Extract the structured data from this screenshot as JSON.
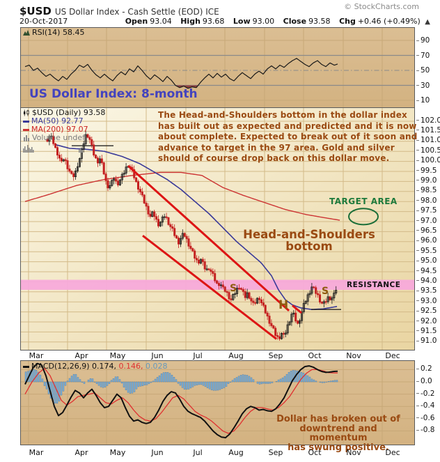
{
  "header": {
    "symbol": "$USD",
    "title": "US Dollar Index - Cash Settle (EOD) ICE",
    "copyright": "© StockCharts.com",
    "date": "20-Oct-2017",
    "ohlc": [
      {
        "label": "Open",
        "value": "93.04"
      },
      {
        "label": "High",
        "value": "93.68"
      },
      {
        "label": "Low",
        "value": "93.00"
      },
      {
        "label": "Close",
        "value": "93.58"
      },
      {
        "label": "Chg",
        "value": "+0.46 (+0.49%)"
      }
    ],
    "chg_arrow": "▲"
  },
  "rsi_panel": {
    "legend": "RSI(14) 58.45",
    "axis": [
      "90",
      "70",
      "50",
      "30",
      "10"
    ]
  },
  "main_panel": {
    "legend": {
      "symbol": "$USD (Daily) 93.58",
      "ma50": "MA(50) 92.77",
      "ma200": "MA(200) 97.07",
      "volume": "Volume undef"
    },
    "axis": [
      "102.0",
      "101.5",
      "101.0",
      "100.5",
      "100.0",
      "99.5",
      "99.0",
      "98.5",
      "98.0",
      "97.5",
      "97.0",
      "96.5",
      "96.0",
      "95.5",
      "95.0",
      "94.5",
      "94.0",
      "93.5",
      "93.0",
      "92.5",
      "92.0",
      "91.5",
      "91.0"
    ]
  },
  "macd_panel": {
    "legend_black": "MACD(12,26,9) 0.174,",
    "legend_red": " 0.146,",
    "legend_blue": " 0.028",
    "axis": [
      "0.2",
      "0.0",
      "-0.2",
      "-0.4",
      "-0.6",
      "-0.8"
    ]
  },
  "months": [
    "Mar",
    "Apr",
    "May",
    "Jun",
    "Jul",
    "Aug",
    "Sep",
    "Oct",
    "Nov",
    "Dec"
  ],
  "annotations": {
    "chart_title": "US Dollar Index: 8-month",
    "commentary": "The Head-and-Shoulders bottom in the dollar index\nhas built out as expected and predicted and it is now\nabout complete. Expected to break out of it soon and\nadvance to target in the 97 area. Gold and silver\nshould of course drop back on this dollar move.",
    "target_area": "TARGET AREA",
    "hs_label": "Head-and-Shoulders\nbottom",
    "resistance": "RESISTANCE",
    "left_shoulder": "S",
    "head": "H",
    "right_shoulder": "S",
    "macd_note": "Dollar has broken out of\ndowntrend and momentum\nhas swung positive."
  },
  "colors": {
    "panel_bg_top": "#DBBE93",
    "panel_bg_bot": "#D3B281",
    "main_bg_tl": "#FBF7E6",
    "main_bg_br": "#E9D5A2",
    "grid_main": "#D3BA88",
    "grid_tan": "#C7A877",
    "gray_line": "#8a8a8a",
    "candle_up": "#1a1a1a",
    "candle_down": "#C42020",
    "ma50": "#3A3A99",
    "ma200": "#CC3333",
    "trendline": "#DD1515",
    "band": "#F7A8DB",
    "rsi_line": "#1a1a1a",
    "rsi_oversold_fill": "#8B3535",
    "macd_line": "#111111",
    "signal_line": "#E03030",
    "hist_fill": "#7FB2D8",
    "hist_stroke": "#4878A8",
    "ellipse_green": "#1A6E38",
    "neckline": "#111111",
    "volume_stub": "#8a8a8a"
  },
  "chart_data": {
    "type": "candlestick",
    "title": "$USD US Dollar Index - Cash Settle (EOD) ICE, 8 months (Mar-Oct 2017)",
    "ylim": [
      90.6,
      102.7
    ],
    "y_step": 0.5,
    "month_lines": [
      41,
      97,
      153,
      210,
      267,
      323,
      380,
      436,
      493,
      549
    ],
    "month_label_t": [
      52,
      117,
      169,
      226,
      284,
      339,
      396,
      452,
      508,
      564
    ],
    "data_t_range": [
      68,
      484
    ],
    "close_keys": [
      [
        68,
        101.1
      ],
      [
        72,
        101.3
      ],
      [
        76,
        101.0
      ],
      [
        80,
        100.6
      ],
      [
        84,
        100.3
      ],
      [
        88,
        99.9
      ],
      [
        92,
        100.2
      ],
      [
        96,
        99.8
      ],
      [
        100,
        99.5
      ],
      [
        104,
        99.2
      ],
      [
        108,
        99.4
      ],
      [
        112,
        99.9
      ],
      [
        116,
        100.3
      ],
      [
        120,
        100.9
      ],
      [
        124,
        101.4
      ],
      [
        128,
        101.2
      ],
      [
        132,
        100.7
      ],
      [
        136,
        100.2
      ],
      [
        140,
        100.0
      ],
      [
        144,
        100.15
      ],
      [
        148,
        99.6
      ],
      [
        152,
        99.0
      ],
      [
        156,
        98.7
      ],
      [
        160,
        98.9
      ],
      [
        164,
        99.2
      ],
      [
        168,
        98.85
      ],
      [
        172,
        99.05
      ],
      [
        176,
        99.3
      ],
      [
        180,
        99.6
      ],
      [
        184,
        99.85
      ],
      [
        188,
        99.65
      ],
      [
        192,
        99.3
      ],
      [
        196,
        98.9
      ],
      [
        200,
        98.6
      ],
      [
        204,
        98.25
      ],
      [
        208,
        97.9
      ],
      [
        212,
        97.55
      ],
      [
        216,
        97.25
      ],
      [
        220,
        97.45
      ],
      [
        224,
        97.1
      ],
      [
        228,
        96.85
      ],
      [
        232,
        97.05
      ],
      [
        236,
        97.3
      ],
      [
        240,
        97.1
      ],
      [
        244,
        96.8
      ],
      [
        248,
        96.55
      ],
      [
        252,
        96.25
      ],
      [
        256,
        95.95
      ],
      [
        260,
        96.2
      ],
      [
        264,
        96.4
      ],
      [
        268,
        96.1
      ],
      [
        272,
        95.8
      ],
      [
        276,
        95.5
      ],
      [
        280,
        95.2
      ],
      [
        284,
        94.95
      ],
      [
        288,
        95.15
      ],
      [
        292,
        94.85
      ],
      [
        296,
        94.55
      ],
      [
        300,
        94.7
      ],
      [
        304,
        94.45
      ],
      [
        308,
        94.15
      ],
      [
        312,
        93.85
      ],
      [
        316,
        93.95
      ],
      [
        320,
        93.65
      ],
      [
        324,
        93.55
      ],
      [
        328,
        93.3
      ],
      [
        332,
        93.1
      ],
      [
        336,
        93.35
      ],
      [
        340,
        93.6
      ],
      [
        344,
        93.8
      ],
      [
        348,
        93.5
      ],
      [
        352,
        93.25
      ],
      [
        356,
        93.45
      ],
      [
        360,
        93.1
      ],
      [
        364,
        92.85
      ],
      [
        368,
        93.05
      ],
      [
        372,
        93.25
      ],
      [
        376,
        92.9
      ],
      [
        380,
        92.6
      ],
      [
        384,
        92.25
      ],
      [
        388,
        91.95
      ],
      [
        392,
        91.65
      ],
      [
        396,
        91.35
      ],
      [
        400,
        91.15
      ],
      [
        404,
        91.45
      ],
      [
        408,
        91.25
      ],
      [
        412,
        91.7
      ],
      [
        416,
        92.1
      ],
      [
        420,
        92.5
      ],
      [
        424,
        92.15
      ],
      [
        428,
        91.85
      ],
      [
        432,
        92.35
      ],
      [
        436,
        92.8
      ],
      [
        440,
        93.15
      ],
      [
        444,
        93.45
      ],
      [
        448,
        93.75
      ],
      [
        452,
        93.55
      ],
      [
        456,
        93.35
      ],
      [
        460,
        93.05
      ],
      [
        464,
        92.85
      ],
      [
        468,
        93.05
      ],
      [
        472,
        93.25
      ],
      [
        476,
        93.15
      ],
      [
        480,
        93.35
      ],
      [
        484,
        93.58
      ]
    ],
    "ma50_keys": [
      [
        78,
        100.85
      ],
      [
        100,
        100.65
      ],
      [
        125,
        100.6
      ],
      [
        150,
        100.5
      ],
      [
        175,
        100.25
      ],
      [
        200,
        99.9
      ],
      [
        220,
        99.5
      ],
      [
        240,
        99.1
      ],
      [
        260,
        98.6
      ],
      [
        280,
        98.0
      ],
      [
        300,
        97.4
      ],
      [
        320,
        96.7
      ],
      [
        340,
        96.0
      ],
      [
        360,
        95.4
      ],
      [
        375,
        94.95
      ],
      [
        390,
        94.3
      ],
      [
        400,
        93.6
      ],
      [
        410,
        93.1
      ],
      [
        420,
        92.85
      ],
      [
        432,
        92.7
      ],
      [
        448,
        92.62
      ],
      [
        464,
        92.65
      ],
      [
        484,
        92.77
      ]
    ],
    "ma200_keys": [
      [
        36,
        98.0
      ],
      [
        70,
        98.35
      ],
      [
        110,
        98.8
      ],
      [
        150,
        99.1
      ],
      [
        190,
        99.3
      ],
      [
        230,
        99.45
      ],
      [
        260,
        99.45
      ],
      [
        290,
        99.3
      ],
      [
        320,
        98.7
      ],
      [
        350,
        98.3
      ],
      [
        380,
        97.95
      ],
      [
        410,
        97.6
      ],
      [
        440,
        97.35
      ],
      [
        465,
        97.2
      ],
      [
        488,
        97.07
      ]
    ],
    "rsi_keys": [
      [
        36,
        55
      ],
      [
        42,
        57
      ],
      [
        48,
        50
      ],
      [
        54,
        53
      ],
      [
        60,
        47
      ],
      [
        66,
        42
      ],
      [
        72,
        45
      ],
      [
        78,
        40
      ],
      [
        84,
        36
      ],
      [
        90,
        42
      ],
      [
        96,
        38
      ],
      [
        102,
        45
      ],
      [
        108,
        50
      ],
      [
        114,
        57
      ],
      [
        120,
        54
      ],
      [
        126,
        58
      ],
      [
        132,
        50
      ],
      [
        138,
        44
      ],
      [
        144,
        40
      ],
      [
        150,
        45
      ],
      [
        156,
        40
      ],
      [
        162,
        36
      ],
      [
        168,
        43
      ],
      [
        174,
        48
      ],
      [
        180,
        44
      ],
      [
        186,
        52
      ],
      [
        192,
        48
      ],
      [
        198,
        56
      ],
      [
        204,
        50
      ],
      [
        210,
        43
      ],
      [
        216,
        38
      ],
      [
        222,
        44
      ],
      [
        228,
        40
      ],
      [
        234,
        35
      ],
      [
        240,
        42
      ],
      [
        246,
        37
      ],
      [
        252,
        30
      ],
      [
        258,
        27
      ],
      [
        264,
        29
      ],
      [
        270,
        26
      ],
      [
        276,
        28
      ],
      [
        282,
        27
      ],
      [
        288,
        34
      ],
      [
        294,
        40
      ],
      [
        300,
        45
      ],
      [
        306,
        40
      ],
      [
        312,
        46
      ],
      [
        318,
        41
      ],
      [
        324,
        45
      ],
      [
        330,
        39
      ],
      [
        336,
        36
      ],
      [
        342,
        42
      ],
      [
        348,
        47
      ],
      [
        354,
        43
      ],
      [
        360,
        39
      ],
      [
        366,
        45
      ],
      [
        372,
        49
      ],
      [
        378,
        45
      ],
      [
        384,
        52
      ],
      [
        390,
        56
      ],
      [
        396,
        52
      ],
      [
        402,
        57
      ],
      [
        408,
        54
      ],
      [
        414,
        59
      ],
      [
        420,
        63
      ],
      [
        426,
        66
      ],
      [
        432,
        62
      ],
      [
        438,
        58
      ],
      [
        444,
        55
      ],
      [
        450,
        60
      ],
      [
        456,
        63
      ],
      [
        462,
        58
      ],
      [
        468,
        55
      ],
      [
        474,
        60
      ],
      [
        480,
        57
      ],
      [
        485,
        58.45
      ]
    ],
    "macd_keys": [
      [
        36,
        -0.04
      ],
      [
        42,
        0.1
      ],
      [
        48,
        0.24
      ],
      [
        54,
        0.3
      ],
      [
        60,
        0.27
      ],
      [
        66,
        0.1
      ],
      [
        72,
        -0.15
      ],
      [
        78,
        -0.4
      ],
      [
        84,
        -0.55
      ],
      [
        90,
        -0.5
      ],
      [
        96,
        -0.38
      ],
      [
        102,
        -0.25
      ],
      [
        108,
        -0.14
      ],
      [
        114,
        -0.18
      ],
      [
        120,
        -0.26
      ],
      [
        126,
        -0.18
      ],
      [
        132,
        -0.12
      ],
      [
        138,
        -0.22
      ],
      [
        144,
        -0.34
      ],
      [
        150,
        -0.42
      ],
      [
        156,
        -0.4
      ],
      [
        162,
        -0.3
      ],
      [
        168,
        -0.2
      ],
      [
        174,
        -0.26
      ],
      [
        180,
        -0.42
      ],
      [
        186,
        -0.56
      ],
      [
        192,
        -0.64
      ],
      [
        198,
        -0.62
      ],
      [
        204,
        -0.66
      ],
      [
        210,
        -0.68
      ],
      [
        216,
        -0.66
      ],
      [
        222,
        -0.58
      ],
      [
        228,
        -0.46
      ],
      [
        234,
        -0.32
      ],
      [
        240,
        -0.22
      ],
      [
        246,
        -0.16
      ],
      [
        252,
        -0.18
      ],
      [
        258,
        -0.28
      ],
      [
        264,
        -0.4
      ],
      [
        270,
        -0.48
      ],
      [
        276,
        -0.52
      ],
      [
        282,
        -0.55
      ],
      [
        288,
        -0.58
      ],
      [
        294,
        -0.64
      ],
      [
        300,
        -0.72
      ],
      [
        306,
        -0.8
      ],
      [
        312,
        -0.86
      ],
      [
        318,
        -0.9
      ],
      [
        324,
        -0.91
      ],
      [
        330,
        -0.85
      ],
      [
        336,
        -0.75
      ],
      [
        342,
        -0.64
      ],
      [
        348,
        -0.52
      ],
      [
        354,
        -0.44
      ],
      [
        360,
        -0.4
      ],
      [
        366,
        -0.42
      ],
      [
        372,
        -0.46
      ],
      [
        378,
        -0.45
      ],
      [
        384,
        -0.47
      ],
      [
        390,
        -0.48
      ],
      [
        396,
        -0.44
      ],
      [
        402,
        -0.36
      ],
      [
        408,
        -0.26
      ],
      [
        414,
        -0.12
      ],
      [
        420,
        0.02
      ],
      [
        426,
        0.12
      ],
      [
        432,
        0.2
      ],
      [
        438,
        0.25
      ],
      [
        444,
        0.26
      ],
      [
        450,
        0.24
      ],
      [
        456,
        0.2
      ],
      [
        462,
        0.17
      ],
      [
        468,
        0.155
      ],
      [
        474,
        0.16
      ],
      [
        480,
        0.17
      ],
      [
        485,
        0.174
      ]
    ],
    "signal_keys": [
      [
        36,
        -0.2
      ],
      [
        46,
        0.0
      ],
      [
        56,
        0.15
      ],
      [
        64,
        0.22
      ],
      [
        72,
        0.1
      ],
      [
        80,
        -0.1
      ],
      [
        88,
        -0.3
      ],
      [
        96,
        -0.38
      ],
      [
        104,
        -0.32
      ],
      [
        112,
        -0.24
      ],
      [
        120,
        -0.22
      ],
      [
        128,
        -0.2
      ],
      [
        136,
        -0.18
      ],
      [
        144,
        -0.26
      ],
      [
        152,
        -0.34
      ],
      [
        160,
        -0.36
      ],
      [
        168,
        -0.3
      ],
      [
        176,
        -0.26
      ],
      [
        184,
        -0.34
      ],
      [
        192,
        -0.46
      ],
      [
        200,
        -0.56
      ],
      [
        208,
        -0.62
      ],
      [
        216,
        -0.64
      ],
      [
        224,
        -0.6
      ],
      [
        232,
        -0.5
      ],
      [
        240,
        -0.38
      ],
      [
        248,
        -0.26
      ],
      [
        256,
        -0.22
      ],
      [
        264,
        -0.28
      ],
      [
        272,
        -0.38
      ],
      [
        280,
        -0.48
      ],
      [
        288,
        -0.54
      ],
      [
        296,
        -0.58
      ],
      [
        304,
        -0.64
      ],
      [
        312,
        -0.72
      ],
      [
        320,
        -0.8
      ],
      [
        328,
        -0.84
      ],
      [
        336,
        -0.8
      ],
      [
        344,
        -0.7
      ],
      [
        352,
        -0.58
      ],
      [
        360,
        -0.48
      ],
      [
        368,
        -0.42
      ],
      [
        376,
        -0.42
      ],
      [
        384,
        -0.44
      ],
      [
        392,
        -0.46
      ],
      [
        400,
        -0.42
      ],
      [
        408,
        -0.34
      ],
      [
        416,
        -0.24
      ],
      [
        424,
        -0.1
      ],
      [
        432,
        0.04
      ],
      [
        440,
        0.14
      ],
      [
        448,
        0.2
      ],
      [
        456,
        0.2
      ],
      [
        464,
        0.18
      ],
      [
        472,
        0.15
      ],
      [
        480,
        0.145
      ],
      [
        485,
        0.146
      ]
    ],
    "resistance_band": {
      "p1": 93.6,
      "p2": 94.1
    },
    "trendlines": [
      {
        "t1": 184,
        "p1": 99.78,
        "t2": 415,
        "p2": 92.56
      },
      {
        "t1": 205,
        "p1": 96.3,
        "t2": 397,
        "p2": 91.15
      },
      {
        "t1": 420,
        "p1": 92.82,
        "t2": 433,
        "p2": 92.45
      }
    ],
    "necklines": [
      {
        "t1": 103,
        "t2": 163,
        "p": 100.78
      },
      {
        "t1": 447,
        "t2": 490,
        "p": 92.62
      }
    ],
    "target_ellipse": {
      "t": 522,
      "p": 97.25,
      "rt": 21,
      "rp": 0.4
    },
    "volume_stub": {
      "t": [
        33,
        35,
        37,
        39,
        41,
        43,
        45,
        47,
        113,
        115,
        117
      ],
      "h": [
        6,
        9,
        4,
        11,
        7,
        5,
        8,
        4,
        5,
        7,
        4
      ]
    }
  }
}
